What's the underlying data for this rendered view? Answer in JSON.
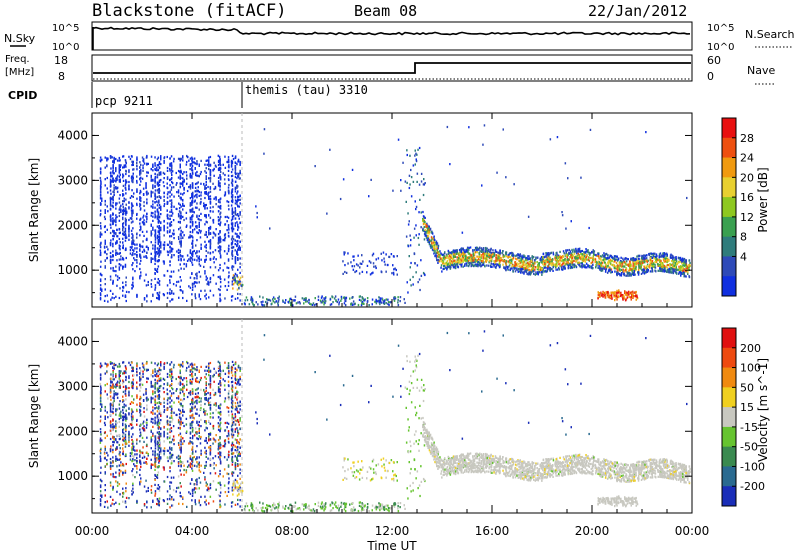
{
  "header": {
    "station": "Blackstone (fitACF)",
    "beam": "Beam 08",
    "date": "22/Jan/2012"
  },
  "sky_panel": {
    "left_label": "N.Sky",
    "left_ticks": [
      "10^5",
      "10^0"
    ],
    "right_label": "N.Search",
    "right_ticks": [
      "10^5",
      "10^0"
    ]
  },
  "freq_panel": {
    "left_label_1": "Freq.",
    "left_label_2": "[MHz]",
    "left_ticks": [
      "18",
      "8"
    ],
    "right_label": "Nave",
    "right_ticks": [
      "60",
      "0"
    ]
  },
  "cpid_panel": {
    "label": "CPID",
    "segments": [
      {
        "name": "pcp 9211",
        "start_hour": 0
      },
      {
        "name": "themis (tau) 3310",
        "start_hour": 6
      }
    ]
  },
  "chart_data": [
    {
      "type": "heatmap",
      "panel": "power",
      "ylabel": "Slant Range [km]",
      "yticks": [
        "4000",
        "3000",
        "2000",
        "1000"
      ],
      "yrange": [
        180,
        4500
      ],
      "x_hours": [
        0,
        24
      ],
      "colorbar_label": "Power [dB]",
      "colorbar_ticks": [
        "28",
        "24",
        "20",
        "16",
        "12",
        "8",
        "4"
      ],
      "colors": [
        "#1030e0",
        "#2e4ab8",
        "#2f7c7c",
        "#3aa050",
        "#8ec820",
        "#e8d030",
        "#f09a10",
        "#ee5010",
        "#e81010"
      ]
    },
    {
      "type": "heatmap",
      "panel": "velocity",
      "ylabel": "Slant Range [km]",
      "yticks": [
        "4000",
        "3000",
        "2000",
        "1000"
      ],
      "yrange": [
        180,
        4500
      ],
      "x_hours": [
        0,
        24
      ],
      "colorbar_label": "Velocity [m s^-1]",
      "colorbar_ticks": [
        "200",
        "100",
        "50",
        "15",
        "-15",
        "-50",
        "-100",
        "-200"
      ],
      "colors": [
        "#1a2eb8",
        "#2a6a90",
        "#3a8a50",
        "#66c430",
        "#c8c8c0",
        "#f0d020",
        "#f08a10",
        "#ee4a10",
        "#e01010"
      ]
    }
  ],
  "x_axis": {
    "label": "Time UT",
    "ticks": [
      "00:00",
      "04:00",
      "08:00",
      "12:00",
      "16:00",
      "20:00",
      "00:00"
    ]
  }
}
